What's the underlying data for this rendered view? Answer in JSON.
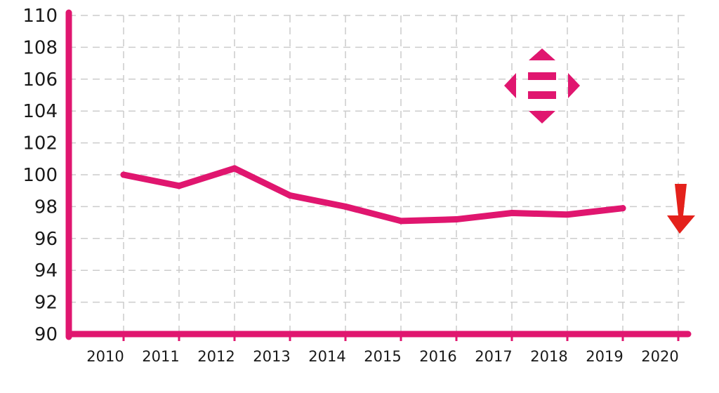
{
  "chart_data": {
    "type": "line",
    "x": [
      2010,
      2011,
      2012,
      2013,
      2014,
      2015,
      2016,
      2017,
      2018,
      2019
    ],
    "x_ticks": [
      "2010",
      "2011",
      "2012",
      "2013",
      "2014",
      "2015",
      "2016",
      "2017",
      "2018",
      "2019",
      "2020"
    ],
    "y_ticks": [
      "90",
      "92",
      "94",
      "96",
      "98",
      "100",
      "102",
      "104",
      "106",
      "108",
      "110"
    ],
    "series": [
      {
        "values": [
          100,
          99.3,
          100.4,
          98.7,
          98.0,
          97.1,
          97.2,
          97.6,
          97.5,
          97.9
        ]
      }
    ],
    "xlim": [
      2009,
      2020
    ],
    "ylim": [
      90,
      110
    ],
    "grid": true,
    "line_color": "#e0166f",
    "axis_color": "#e0166f",
    "grid_color": "#cccccc",
    "icons": [
      {
        "name": "four-way-arrow-icon",
        "color": "#e0166f"
      },
      {
        "name": "down-arrow-icon",
        "color": "#e4211b"
      }
    ]
  }
}
